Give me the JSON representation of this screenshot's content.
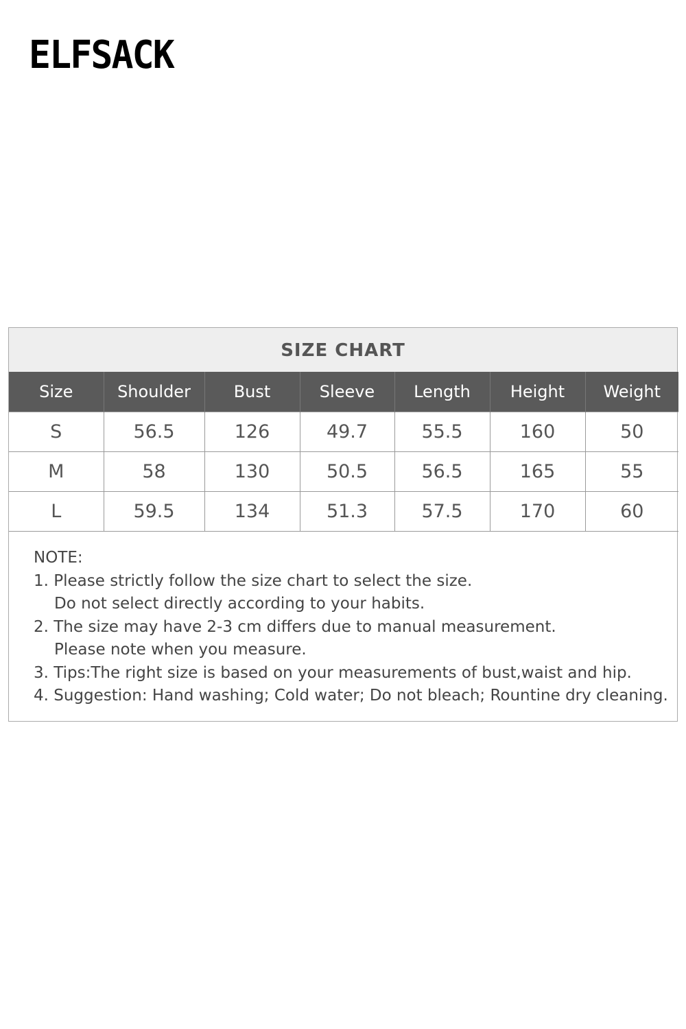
{
  "header": {
    "logo": "ELFSACK"
  },
  "size_chart": {
    "title": "SIZE CHART",
    "columns": [
      "Size",
      "Shoulder",
      "Bust",
      "Sleeve",
      "Length",
      "Height",
      "Weight"
    ],
    "rows": [
      [
        "S",
        "56.5",
        "126",
        "49.7",
        "55.5",
        "160",
        "50"
      ],
      [
        "M",
        "58",
        "130",
        "50.5",
        "56.5",
        "165",
        "55"
      ],
      [
        "L",
        "59.5",
        "134",
        "51.3",
        "57.5",
        "170",
        "60"
      ]
    ],
    "note": {
      "heading": "NOTE:",
      "items": [
        [
          "1. Please strictly follow the size chart to select the size.",
          "Do not select directly according to your habits."
        ],
        [
          "2. The size may have 2-3 cm differs due to manual measurement.",
          "Please note when you measure."
        ],
        [
          "3. Tips:The right size is based on your measurements of bust,waist and hip."
        ],
        [
          "4. Suggestion: Hand washing; Cold water; Do not bleach; Rountine dry cleaning."
        ]
      ]
    }
  }
}
